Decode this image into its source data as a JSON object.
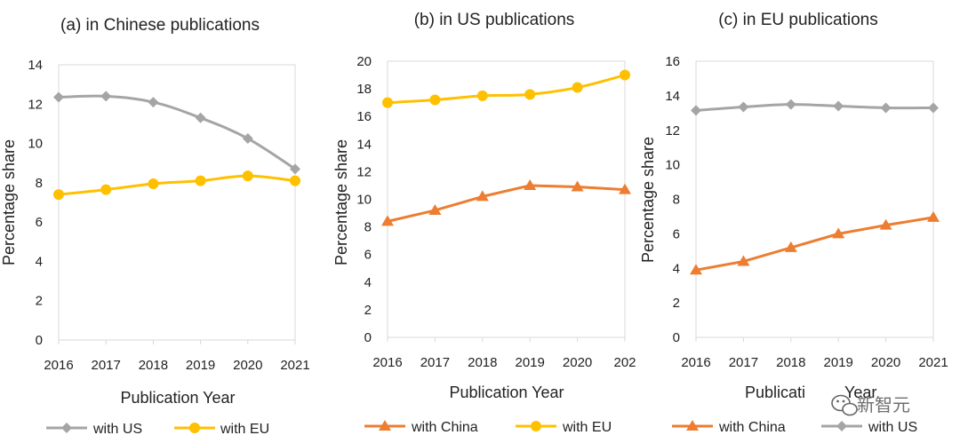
{
  "chart_data": [
    {
      "type": "line",
      "title": "(a) in Chinese publications",
      "xlabel": "Publication Year",
      "ylabel": "Percentage share",
      "categories": [
        "2016",
        "2017",
        "2018",
        "2019",
        "2020",
        "2021"
      ],
      "ylim": [
        0,
        14
      ],
      "yticks": [
        "0",
        "2",
        "4",
        "6",
        "8",
        "10",
        "12",
        "14"
      ],
      "series": [
        {
          "name": "with US",
          "values": [
            12.35,
            12.4,
            12.1,
            11.3,
            10.25,
            8.7
          ],
          "color": "#a5a5a5",
          "marker": "diamond",
          "smooth": true
        },
        {
          "name": "with EU",
          "values": [
            7.4,
            7.65,
            7.95,
            8.1,
            8.35,
            8.1
          ],
          "color": "#ffc000",
          "marker": "circle",
          "smooth": true
        }
      ]
    },
    {
      "type": "line",
      "title": "(b) in US publications",
      "xlabel": "Publication Year",
      "ylabel": "Percentage share",
      "categories": [
        "2016",
        "2017",
        "2018",
        "2019",
        "2020",
        "202"
      ],
      "ylim": [
        0,
        20
      ],
      "yticks": [
        "0",
        "2",
        "4",
        "6",
        "8",
        "10",
        "12",
        "14",
        "16",
        "18",
        "20"
      ],
      "series": [
        {
          "name": "with China",
          "values": [
            8.4,
            9.2,
            10.2,
            11.0,
            10.9,
            10.7
          ],
          "color": "#ed7d31",
          "marker": "triangle",
          "smooth": false
        },
        {
          "name": "with EU",
          "values": [
            17.0,
            17.2,
            17.5,
            17.6,
            18.1,
            19.0
          ],
          "color": "#ffc000",
          "marker": "circle",
          "smooth": true
        }
      ]
    },
    {
      "type": "line",
      "title": "(c) in EU publications",
      "xlabel": "Publicati",
      "xlabel_tail": "Year",
      "ylabel": "Percentage share",
      "categories": [
        "2016",
        "2017",
        "2018",
        "2019",
        "2020",
        "2021"
      ],
      "ylim": [
        0,
        16
      ],
      "yticks": [
        "0",
        "2",
        "4",
        "6",
        "8",
        "10",
        "12",
        "14",
        "16"
      ],
      "series": [
        {
          "name": "with China",
          "values": [
            3.9,
            4.4,
            5.2,
            6.0,
            6.5,
            6.95
          ],
          "color": "#ed7d31",
          "marker": "triangle",
          "smooth": false
        },
        {
          "name": "with US",
          "values": [
            13.15,
            13.35,
            13.5,
            13.4,
            13.3,
            13.3
          ],
          "color": "#a5a5a5",
          "marker": "diamond",
          "smooth": true
        }
      ]
    }
  ],
  "watermark": {
    "text": "新智元",
    "icon": "wechat-icon"
  }
}
